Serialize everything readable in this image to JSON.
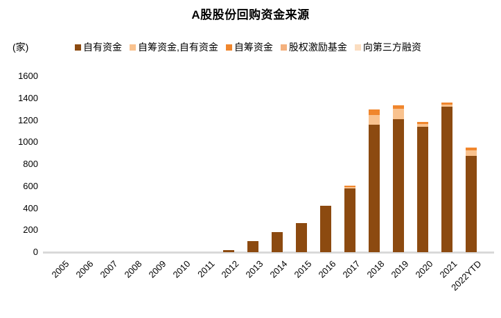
{
  "title": "A股股份回购资金来源",
  "unit_label": "(家)",
  "chart_data": {
    "type": "bar",
    "stacked": true,
    "title": "A股股份回购资金来源",
    "ylabel": "(家)",
    "ylim": [
      0,
      1600
    ],
    "yticks": [
      0,
      200,
      400,
      600,
      800,
      1000,
      1200,
      1400,
      1600
    ],
    "grid": false,
    "legend_position": "top",
    "axis_line_color": "#D9D9D9",
    "categories": [
      "2005",
      "2006",
      "2007",
      "2008",
      "2009",
      "2010",
      "2011",
      "2012",
      "2013",
      "2014",
      "2015",
      "2016",
      "2017",
      "2018",
      "2019",
      "2020",
      "2021",
      "2022YTD"
    ],
    "series": [
      {
        "name": "自有资金",
        "color": "#8C4A10",
        "values": [
          0,
          0,
          0,
          0,
          0,
          0,
          0,
          20,
          100,
          185,
          265,
          425,
          580,
          1160,
          1210,
          1140,
          1320,
          875
        ]
      },
      {
        "name": "自筹资金,自有资金",
        "color": "#F9C28E",
        "values": [
          0,
          0,
          0,
          0,
          0,
          0,
          0,
          0,
          0,
          0,
          0,
          0,
          15,
          90,
          95,
          25,
          20,
          50
        ]
      },
      {
        "name": "自筹资金",
        "color": "#F0862D",
        "values": [
          0,
          0,
          0,
          0,
          0,
          0,
          0,
          0,
          0,
          0,
          0,
          0,
          10,
          45,
          30,
          20,
          20,
          25
        ]
      },
      {
        "name": "股权激励基金",
        "color": "#F4B17E",
        "values": [
          0,
          0,
          0,
          0,
          0,
          0,
          0,
          0,
          0,
          0,
          0,
          0,
          0,
          0,
          0,
          0,
          0,
          0
        ]
      },
      {
        "name": "向第三方融资",
        "color": "#FBDDC0",
        "values": [
          0,
          0,
          0,
          0,
          0,
          0,
          0,
          0,
          0,
          0,
          0,
          0,
          0,
          0,
          0,
          0,
          0,
          0
        ]
      }
    ]
  }
}
